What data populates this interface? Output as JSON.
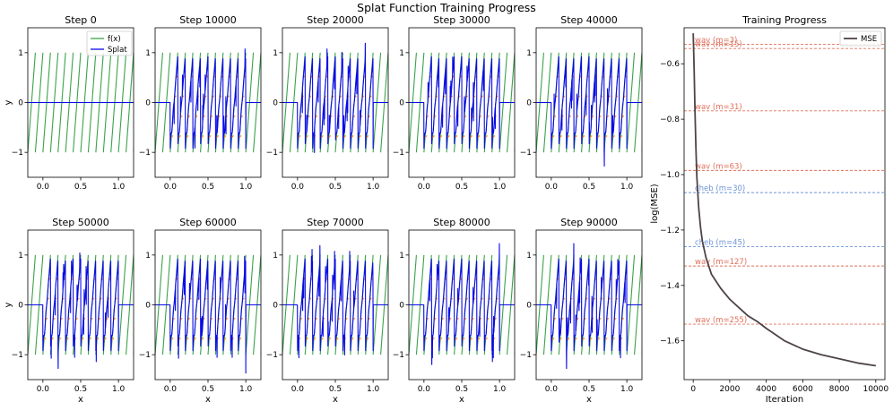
{
  "figure_title": "Splat Function Training Progress",
  "chart_data": [
    {
      "type": "line",
      "panel": "small-multiples",
      "titles": [
        "Step 0",
        "Step 10000",
        "Step 20000",
        "Step 30000",
        "Step 40000",
        "Step 50000",
        "Step 60000",
        "Step 70000",
        "Step 80000",
        "Step 90000"
      ],
      "xlabel": "x",
      "ylabel": "y",
      "xlim": [
        -0.2,
        1.2
      ],
      "ylim": [
        -1.5,
        1.5
      ],
      "xticks": [
        0.0,
        0.5,
        1.0
      ],
      "xtick_labels": [
        "0.0",
        "0.5",
        "1.0"
      ],
      "yticks": [
        -1,
        0,
        1
      ],
      "ytick_labels": [
        "−1",
        "0",
        "1"
      ],
      "target": {
        "name": "f(x)",
        "description": "sawtooth",
        "periods": 10,
        "amplitude": 1,
        "color": "#3aa34a"
      },
      "model": {
        "name": "Splat",
        "color": "#0a0ae6",
        "support": [
          0.0,
          1.0
        ]
      },
      "approx_residue_color": "#ff8c1a",
      "legend": [
        "f(x)",
        "Splat"
      ],
      "legend_location": "upper right (Step 0 panel)"
    },
    {
      "type": "line",
      "panel": "training-progress",
      "title": "Training Progress",
      "xlabel": "Iteration",
      "ylabel": "log(MSE)",
      "xlim": [
        -500,
        10500
      ],
      "ylim": [
        -1.74,
        -0.47
      ],
      "xticks": [
        0,
        2000,
        4000,
        6000,
        8000,
        10000
      ],
      "xtick_labels": [
        "0",
        "2000",
        "4000",
        "6000",
        "8000",
        "10000"
      ],
      "yticks": [
        -1.6,
        -1.4,
        -1.2,
        -1.0,
        -0.8,
        -0.6
      ],
      "ytick_labels": [
        "−1.6",
        "−1.4",
        "−1.2",
        "−1.0",
        "−0.8",
        "−0.6"
      ],
      "series": [
        {
          "name": "MSE",
          "color": "#4e4348",
          "x": [
            0,
            50,
            100,
            150,
            200,
            300,
            400,
            500,
            700,
            1000,
            1500,
            2000,
            2500,
            3000,
            3500,
            4000,
            5000,
            6000,
            7000,
            8000,
            9000,
            10000
          ],
          "y": [
            -0.49,
            -0.62,
            -0.78,
            -0.91,
            -1.01,
            -1.12,
            -1.19,
            -1.24,
            -1.3,
            -1.36,
            -1.41,
            -1.45,
            -1.48,
            -1.51,
            -1.53,
            -1.555,
            -1.6,
            -1.63,
            -1.65,
            -1.665,
            -1.68,
            -1.69
          ]
        }
      ],
      "reference_lines": [
        {
          "label": "wav (m=3)",
          "value": -0.53,
          "color": "#e0705a"
        },
        {
          "label": "wav (m=15)",
          "value": -0.545,
          "color": "#e0705a"
        },
        {
          "label": "wav (m=31)",
          "value": -0.77,
          "color": "#e0705a"
        },
        {
          "label": "wav (m=63)",
          "value": -0.985,
          "color": "#e0705a"
        },
        {
          "label": "cheb (m=30)",
          "value": -1.065,
          "color": "#6d95d8"
        },
        {
          "label": "cheb (m=45)",
          "value": -1.26,
          "color": "#6d95d8"
        },
        {
          "label": "wav (m=127)",
          "value": -1.33,
          "color": "#e0705a"
        },
        {
          "label": "wav (m=255)",
          "value": -1.54,
          "color": "#e0705a"
        }
      ],
      "legend": [
        "MSE"
      ],
      "legend_location": "upper right"
    }
  ]
}
